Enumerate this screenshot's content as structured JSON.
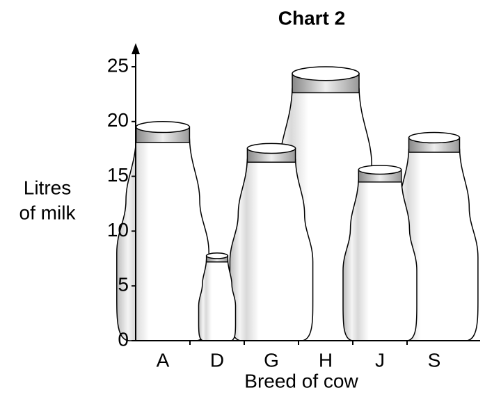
{
  "chart_data": {
    "type": "pictograph",
    "title": "Chart 2",
    "ylabel": [
      "Litres",
      "of milk"
    ],
    "xlabel": "Breed of cow",
    "categories": [
      "A",
      "D",
      "G",
      "H",
      "J",
      "S"
    ],
    "values": [
      20,
      8,
      18,
      25,
      16,
      19
    ],
    "ylim": [
      0,
      25
    ],
    "yticks": [
      0,
      5,
      10,
      15,
      20,
      25
    ],
    "color": "#ffffff"
  }
}
